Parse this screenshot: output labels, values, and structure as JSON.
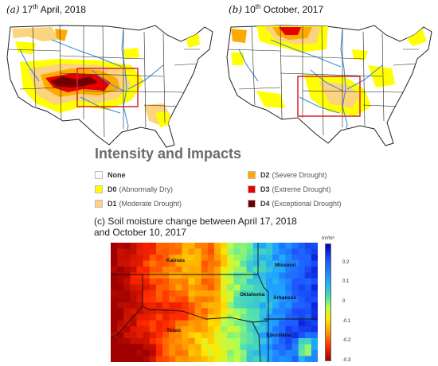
{
  "panel_a": {
    "label_prefix": "(a)",
    "day": "17",
    "suffix": "th",
    "rest": " April, 2018"
  },
  "panel_b": {
    "label_prefix": "(b)",
    "day": "10",
    "suffix": "th",
    "rest": " October, 2017"
  },
  "legend": {
    "title": "Intensity and Impacts",
    "items": [
      {
        "code": "None",
        "name": "",
        "color": "#ffffff"
      },
      {
        "code": "D0",
        "name": "(Abnormally Dry)",
        "color": "#ffff00"
      },
      {
        "code": "D1",
        "name": "(Moderate Drought)",
        "color": "#fcd37f"
      },
      {
        "code": "D2",
        "name": "(Severe Drought)",
        "color": "#ffaa00"
      },
      {
        "code": "D3",
        "name": "(Extreme Drought)",
        "color": "#e60000"
      },
      {
        "code": "D4",
        "name": "(Exceptional Drought)",
        "color": "#730000"
      }
    ]
  },
  "panel_c": {
    "title_line1": "(c) Soil moisture change between April 17, 2018",
    "title_line2": "and October 10, 2017",
    "colorbar_unit": "m³/m³",
    "ticks": [
      "0.2",
      "0.1",
      "0",
      "-0.1",
      "-0.2",
      "-0.3"
    ],
    "tick_values": [
      0.2,
      0.1,
      0,
      -0.1,
      -0.2,
      -0.3
    ],
    "range": [
      -0.3,
      0.3
    ],
    "states": [
      "Kansas",
      "Missouri",
      "Oklahoma",
      "Arkansas",
      "Texas",
      "Louisiana"
    ]
  },
  "colors": {
    "study_box": "#d9202a",
    "rivers": "#3d8fd6"
  }
}
